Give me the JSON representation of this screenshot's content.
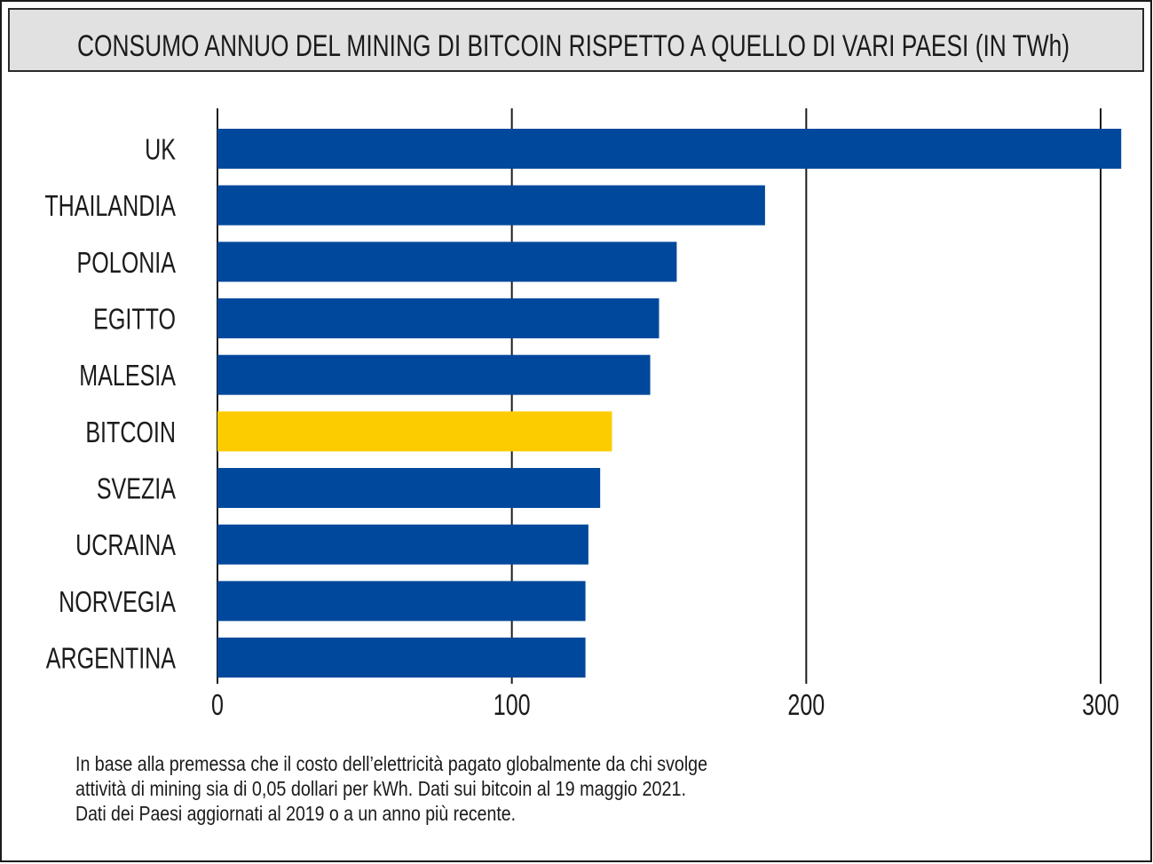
{
  "chart_data": {
    "type": "bar",
    "orientation": "horizontal",
    "title": "CONSUMO ANNUO DEL MINING DI BITCOIN RISPETTO A QUELLO DI VARI PAESI (IN TWh)",
    "categories": [
      "UK",
      "THAILANDIA",
      "POLONIA",
      "EGITTO",
      "MALESIA",
      "BITCOIN",
      "SVEZIA",
      "UCRAINA",
      "NORVEGIA",
      "ARGENTINA"
    ],
    "values": [
      307,
      186,
      156,
      150,
      147,
      134,
      130,
      126,
      125,
      125
    ],
    "bar_colors": [
      "#00489c",
      "#00489c",
      "#00489c",
      "#00489c",
      "#00489c",
      "#fdcc00",
      "#00489c",
      "#00489c",
      "#00489c",
      "#00489c"
    ],
    "xlim": [
      0,
      300
    ],
    "xticks": [
      0,
      100,
      200,
      300
    ],
    "grid": true,
    "colors": {
      "bar": "#00489c",
      "highlight": "#fdcc00",
      "title_box": "#e1e1e1"
    },
    "note": [
      "In base alla premessa che il costo dell’elettricità pagato globalmente da chi svolge",
      "attività di mining sia di 0,05 dollari per kWh. Dati sui bitcoin al 19 maggio 2021.",
      "Dati dei Paesi aggiornati al 2019 o a un anno più recente."
    ]
  }
}
